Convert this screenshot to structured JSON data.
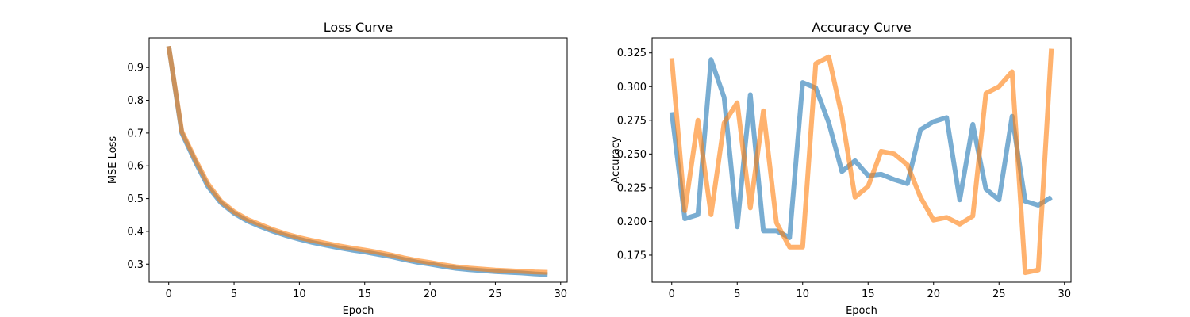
{
  "chart_data": [
    {
      "type": "line",
      "title": "Loss Curve",
      "xlabel": "Epoch",
      "ylabel": "MSE Loss",
      "xlim": [
        -1.5,
        30.5
      ],
      "ylim": [
        0.245,
        0.99
      ],
      "xticks": [
        0,
        5,
        10,
        15,
        20,
        25,
        30
      ],
      "yticks": [
        0.3,
        0.4,
        0.5,
        0.6,
        0.7,
        0.8,
        0.9
      ],
      "ytick_decimals": 1,
      "grid": false,
      "x": [
        0,
        1,
        2,
        3,
        4,
        5,
        6,
        7,
        8,
        9,
        10,
        11,
        12,
        13,
        14,
        15,
        16,
        17,
        18,
        19,
        20,
        21,
        22,
        23,
        24,
        25,
        26,
        27,
        28,
        29
      ],
      "series": [
        {
          "color": "#1f77b4",
          "values": [
            0.965,
            0.7,
            0.615,
            0.537,
            0.487,
            0.455,
            0.432,
            0.415,
            0.4,
            0.387,
            0.376,
            0.366,
            0.358,
            0.35,
            0.343,
            0.337,
            0.33,
            0.323,
            0.314,
            0.306,
            0.3,
            0.293,
            0.287,
            0.283,
            0.28,
            0.277,
            0.275,
            0.273,
            0.27,
            0.268
          ]
        },
        {
          "color": "#ff7f0e",
          "values": [
            0.965,
            0.705,
            0.622,
            0.545,
            0.492,
            0.46,
            0.437,
            0.421,
            0.405,
            0.392,
            0.381,
            0.372,
            0.364,
            0.356,
            0.349,
            0.343,
            0.336,
            0.328,
            0.319,
            0.311,
            0.305,
            0.298,
            0.292,
            0.288,
            0.285,
            0.282,
            0.28,
            0.278,
            0.276,
            0.275
          ]
        }
      ]
    },
    {
      "type": "line",
      "title": "Accuracy Curve",
      "xlabel": "Epoch",
      "ylabel": "Accuracy",
      "xlim": [
        -1.5,
        30.5
      ],
      "ylim": [
        0.155,
        0.336
      ],
      "xticks": [
        0,
        5,
        10,
        15,
        20,
        25,
        30
      ],
      "yticks": [
        0.175,
        0.2,
        0.225,
        0.25,
        0.275,
        0.3,
        0.325
      ],
      "ytick_decimals": 3,
      "grid": false,
      "x": [
        0,
        1,
        2,
        3,
        4,
        5,
        6,
        7,
        8,
        9,
        10,
        11,
        12,
        13,
        14,
        15,
        16,
        17,
        18,
        19,
        20,
        21,
        22,
        23,
        24,
        25,
        26,
        27,
        28,
        29
      ],
      "series": [
        {
          "color": "#1f77b4",
          "values": [
            0.281,
            0.202,
            0.205,
            0.32,
            0.292,
            0.196,
            0.294,
            0.193,
            0.193,
            0.188,
            0.303,
            0.299,
            0.273,
            0.237,
            0.245,
            0.234,
            0.235,
            0.231,
            0.228,
            0.268,
            0.274,
            0.277,
            0.216,
            0.272,
            0.224,
            0.216,
            0.278,
            0.215,
            0.212,
            0.218
          ]
        },
        {
          "color": "#ff7f0e",
          "values": [
            0.321,
            0.208,
            0.275,
            0.205,
            0.273,
            0.288,
            0.21,
            0.282,
            0.199,
            0.181,
            0.181,
            0.317,
            0.322,
            0.278,
            0.218,
            0.226,
            0.252,
            0.25,
            0.242,
            0.218,
            0.201,
            0.203,
            0.198,
            0.204,
            0.295,
            0.3,
            0.311,
            0.162,
            0.164,
            0.328
          ]
        }
      ]
    }
  ]
}
